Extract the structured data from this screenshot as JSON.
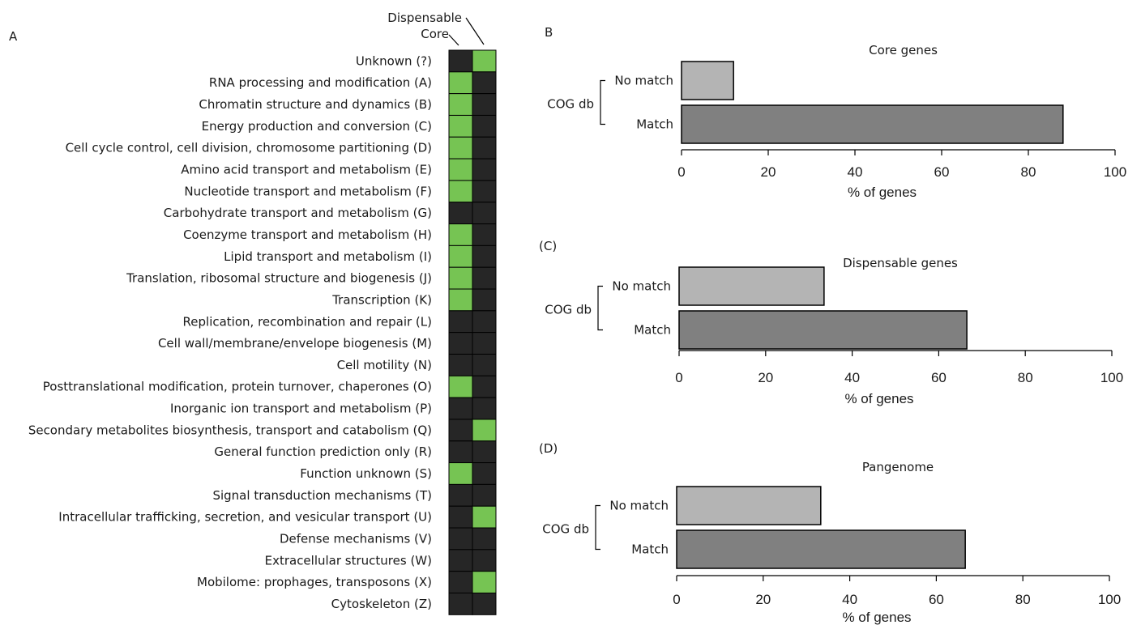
{
  "colors": {
    "present": "#76c453",
    "absent": "#262626",
    "no_match_bar": "#b4b4b4",
    "match_bar": "#808080",
    "outline": "#000000"
  },
  "panel_a": {
    "label": "A",
    "column_headers": [
      "Core",
      "Dispensable"
    ]
  },
  "chart_data": [
    {
      "type": "heatmap",
      "panel": "A",
      "columns": [
        "Core",
        "Dispensable"
      ],
      "rows": [
        {
          "label": "Unknown (?)",
          "core": 0,
          "dispensable": 1
        },
        {
          "label": "RNA processing and modification (A)",
          "core": 1,
          "dispensable": 0
        },
        {
          "label": "Chromatin structure and dynamics (B)",
          "core": 1,
          "dispensable": 0
        },
        {
          "label": "Energy production and conversion (C)",
          "core": 1,
          "dispensable": 0
        },
        {
          "label": "Cell cycle control, cell division, chromosome partitioning (D)",
          "core": 1,
          "dispensable": 0
        },
        {
          "label": "Amino acid transport and metabolism (E)",
          "core": 1,
          "dispensable": 0
        },
        {
          "label": "Nucleotide transport and metabolism (F)",
          "core": 1,
          "dispensable": 0
        },
        {
          "label": "Carbohydrate transport and metabolism (G)",
          "core": 0,
          "dispensable": 0
        },
        {
          "label": "Coenzyme transport and metabolism (H)",
          "core": 1,
          "dispensable": 0
        },
        {
          "label": "Lipid transport and metabolism (I)",
          "core": 1,
          "dispensable": 0
        },
        {
          "label": "Translation, ribosomal structure and biogenesis (J)",
          "core": 1,
          "dispensable": 0
        },
        {
          "label": "Transcription (K)",
          "core": 1,
          "dispensable": 0
        },
        {
          "label": "Replication, recombination and repair (L)",
          "core": 0,
          "dispensable": 0
        },
        {
          "label": "Cell wall/membrane/envelope biogenesis (M)",
          "core": 0,
          "dispensable": 0
        },
        {
          "label": "Cell motility (N)",
          "core": 0,
          "dispensable": 0
        },
        {
          "label": "Posttranslational modification, protein turnover, chaperones (O)",
          "core": 1,
          "dispensable": 0
        },
        {
          "label": "Inorganic ion transport and metabolism (P)",
          "core": 0,
          "dispensable": 0
        },
        {
          "label": "Secondary metabolites biosynthesis, transport and catabolism (Q)",
          "core": 0,
          "dispensable": 1
        },
        {
          "label": "General function prediction only (R)",
          "core": 0,
          "dispensable": 0
        },
        {
          "label": "Function unknown (S)",
          "core": 1,
          "dispensable": 0
        },
        {
          "label": "Signal transduction mechanisms (T)",
          "core": 0,
          "dispensable": 0
        },
        {
          "label": "Intracellular trafficking, secretion, and vesicular transport (U)",
          "core": 0,
          "dispensable": 1
        },
        {
          "label": "Defense mechanisms (V)",
          "core": 0,
          "dispensable": 0
        },
        {
          "label": "Extracellular structures (W)",
          "core": 0,
          "dispensable": 0
        },
        {
          "label": "Mobilome: prophages, transposons (X)",
          "core": 0,
          "dispensable": 1
        },
        {
          "label": "Cytoskeleton (Z)",
          "core": 0,
          "dispensable": 0
        }
      ]
    },
    {
      "type": "bar",
      "orientation": "horizontal",
      "panel": "B",
      "title": "Core genes",
      "ylabel": "COG db",
      "xlabel": "% of genes",
      "categories": [
        "No match",
        "Match"
      ],
      "values": [
        12,
        88
      ],
      "xlim": [
        0,
        100
      ],
      "xticks": [
        0,
        20,
        40,
        60,
        80,
        100
      ],
      "grid": false
    },
    {
      "type": "bar",
      "orientation": "horizontal",
      "panel": "(C)",
      "title": "Dispensable genes",
      "ylabel": "COG db",
      "xlabel": "% of genes",
      "categories": [
        "No match",
        "Match"
      ],
      "values": [
        33.5,
        66.5
      ],
      "xlim": [
        0,
        100
      ],
      "xticks": [
        0,
        20,
        40,
        60,
        80,
        100
      ],
      "grid": false
    },
    {
      "type": "bar",
      "orientation": "horizontal",
      "panel": "(D)",
      "title": "Pangenome",
      "ylabel": "COG db",
      "xlabel": "% of genes",
      "categories": [
        "No match",
        "Match"
      ],
      "values": [
        33.3,
        66.7
      ],
      "xlim": [
        0,
        100
      ],
      "xticks": [
        0,
        20,
        40,
        60,
        80,
        100
      ],
      "grid": false
    }
  ]
}
